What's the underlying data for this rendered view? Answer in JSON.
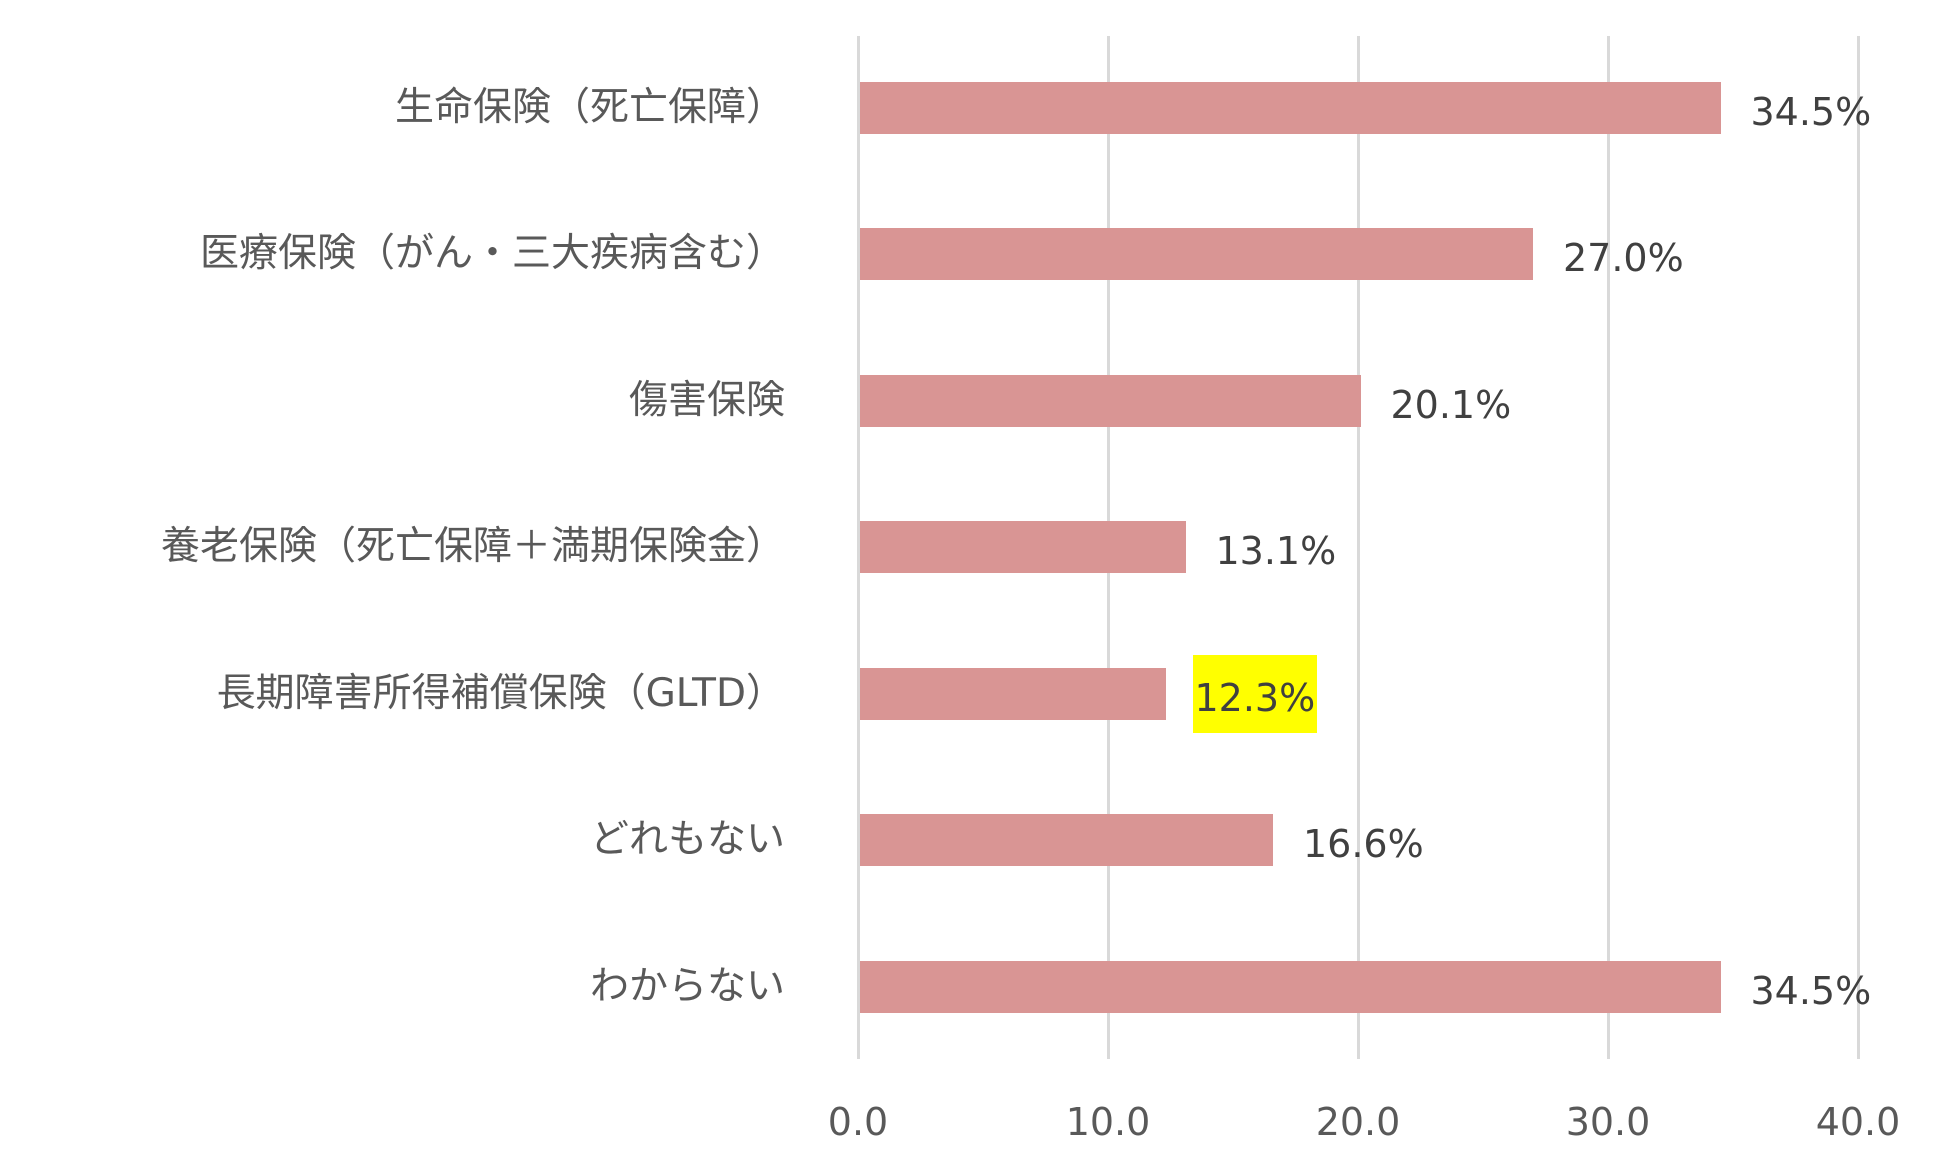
{
  "chart_data": {
    "type": "bar",
    "orientation": "horizontal",
    "title": "",
    "xlabel": "",
    "ylabel": "",
    "xlim": [
      0,
      40
    ],
    "x_ticks": [
      "0.0",
      "10.0",
      "20.0",
      "30.0",
      "40.0"
    ],
    "grid": true,
    "legend": null,
    "categories": [
      "生命保険（死亡保障）",
      "医療保険（がん・三大疾病含む）",
      "傷害保険",
      "養老保険（死亡保障＋満期保険金）",
      "長期障害所得補償保険（GLTD）",
      "どれもない",
      "わからない"
    ],
    "values": [
      34.5,
      27.0,
      20.1,
      13.1,
      12.3,
      16.6,
      34.5
    ],
    "data_labels": [
      "34.5%",
      "27.0%",
      "20.1%",
      "13.1%",
      "12.3%",
      "16.6%",
      "34.5%"
    ],
    "highlighted_index": 4,
    "colors": {
      "bar": "#d99594",
      "highlight": "#ffff00",
      "grid": "#d9d9d9"
    }
  }
}
